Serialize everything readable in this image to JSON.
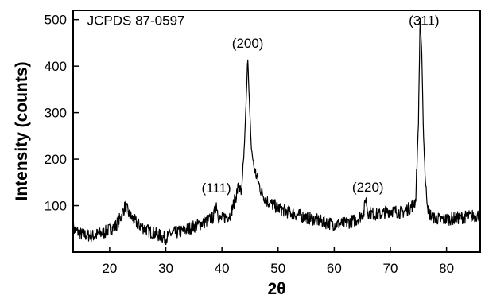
{
  "chart_data": {
    "type": "line",
    "title": "",
    "xlabel": "2θ",
    "ylabel": "Intensity (counts)",
    "xlim": [
      13.5,
      86
    ],
    "ylim": [
      0,
      520
    ],
    "x_ticks": [
      "20",
      "30",
      "40",
      "50",
      "60",
      "70",
      "80"
    ],
    "y_ticks": [
      "100",
      "200",
      "300",
      "400",
      "500"
    ],
    "grid": false,
    "legend": "none",
    "line_color": "#000000",
    "annotations": [
      {
        "text": "JCPDS 87-0597",
        "x": 16,
        "y": 488
      },
      {
        "text": "(111)",
        "x": 39,
        "y": 128
      },
      {
        "text": "(200)",
        "x": 44.6,
        "y": 440
      },
      {
        "text": "(220)",
        "x": 66,
        "y": 130
      },
      {
        "text": "(311)",
        "x": 76,
        "y": 488
      }
    ],
    "series": [
      {
        "x": [
          13.5,
          15,
          17,
          19,
          21,
          22,
          22.8,
          23.5,
          25,
          27,
          29,
          30,
          31,
          33,
          35,
          37,
          38.5,
          39,
          39.5,
          40.5,
          41.5,
          42.5,
          43,
          43.5,
          44,
          44.3,
          44.6,
          44.9,
          45.2,
          45.6,
          46,
          46.5,
          47,
          48,
          50,
          52,
          55,
          58,
          60,
          62,
          64,
          65.3,
          65.6,
          66,
          68,
          70,
          72,
          73.5,
          74.5,
          75,
          75.3,
          75.6,
          75.9,
          76.3,
          76.8,
          77.5,
          79,
          81,
          83,
          86
        ],
        "y": [
          50,
          38,
          35,
          42,
          55,
          75,
          100,
          80,
          60,
          45,
          35,
          30,
          40,
          45,
          55,
          65,
          75,
          105,
          70,
          75,
          80,
          120,
          145,
          120,
          230,
          320,
          420,
          320,
          230,
          190,
          170,
          150,
          130,
          110,
          95,
          85,
          75,
          65,
          60,
          62,
          70,
          85,
          120,
          85,
          80,
          90,
          85,
          95,
          110,
          280,
          510,
          420,
          250,
          140,
          85,
          75,
          70,
          72,
          75,
          80
        ]
      }
    ]
  }
}
